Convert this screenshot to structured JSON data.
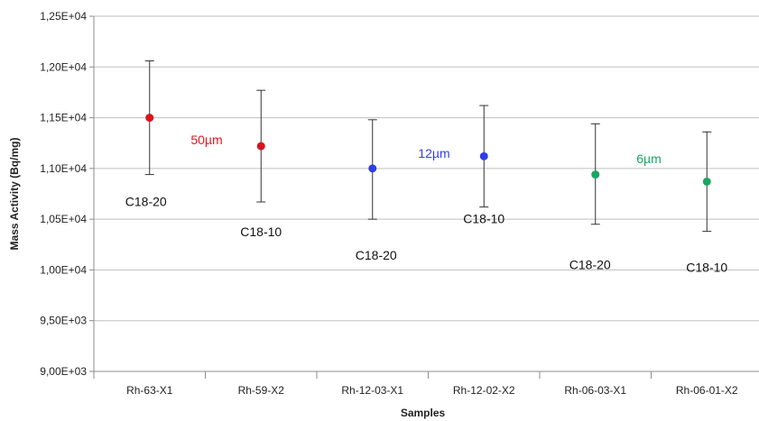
{
  "chart_data": {
    "type": "scatter",
    "xlabel": "Samples",
    "ylabel": "Mass Activity (Bq/mg)",
    "ylim": [
      9000,
      12500
    ],
    "y_ticks": [
      9000,
      9500,
      10000,
      10500,
      11000,
      11500,
      12000,
      12500
    ],
    "y_tick_labels": [
      "9,00E+03",
      "9,50E+03",
      "1,00E+04",
      "1,05E+04",
      "1,10E+04",
      "1,15E+04",
      "1,20E+04",
      "1,25E+04"
    ],
    "categories": [
      "Rh-63-X1",
      "Rh-59-X2",
      "Rh-12-03-X1",
      "Rh-12-02-X2",
      "Rh-06-03-X1",
      "Rh-06-01-X2"
    ],
    "values": [
      11500,
      11220,
      11000,
      11120,
      10940,
      10870
    ],
    "error_low": [
      10940,
      10670,
      10500,
      10620,
      10450,
      10380
    ],
    "error_high": [
      12060,
      11770,
      11480,
      11620,
      11440,
      11360
    ],
    "point_colors": [
      "#d9141e",
      "#d9141e",
      "#2f3ee6",
      "#2f3ee6",
      "#1aa563",
      "#1aa563"
    ],
    "point_labels": [
      "C18-20",
      "C18-10",
      "C18-20",
      "C18-10",
      "C18-20",
      "C18-10"
    ],
    "group_labels": [
      {
        "text": "50µm",
        "color": "#e8151f"
      },
      {
        "text": "12µm",
        "color": "#2f3ee6"
      },
      {
        "text": "6µm",
        "color": "#1aa563"
      }
    ],
    "grid": true,
    "legend": "none"
  }
}
